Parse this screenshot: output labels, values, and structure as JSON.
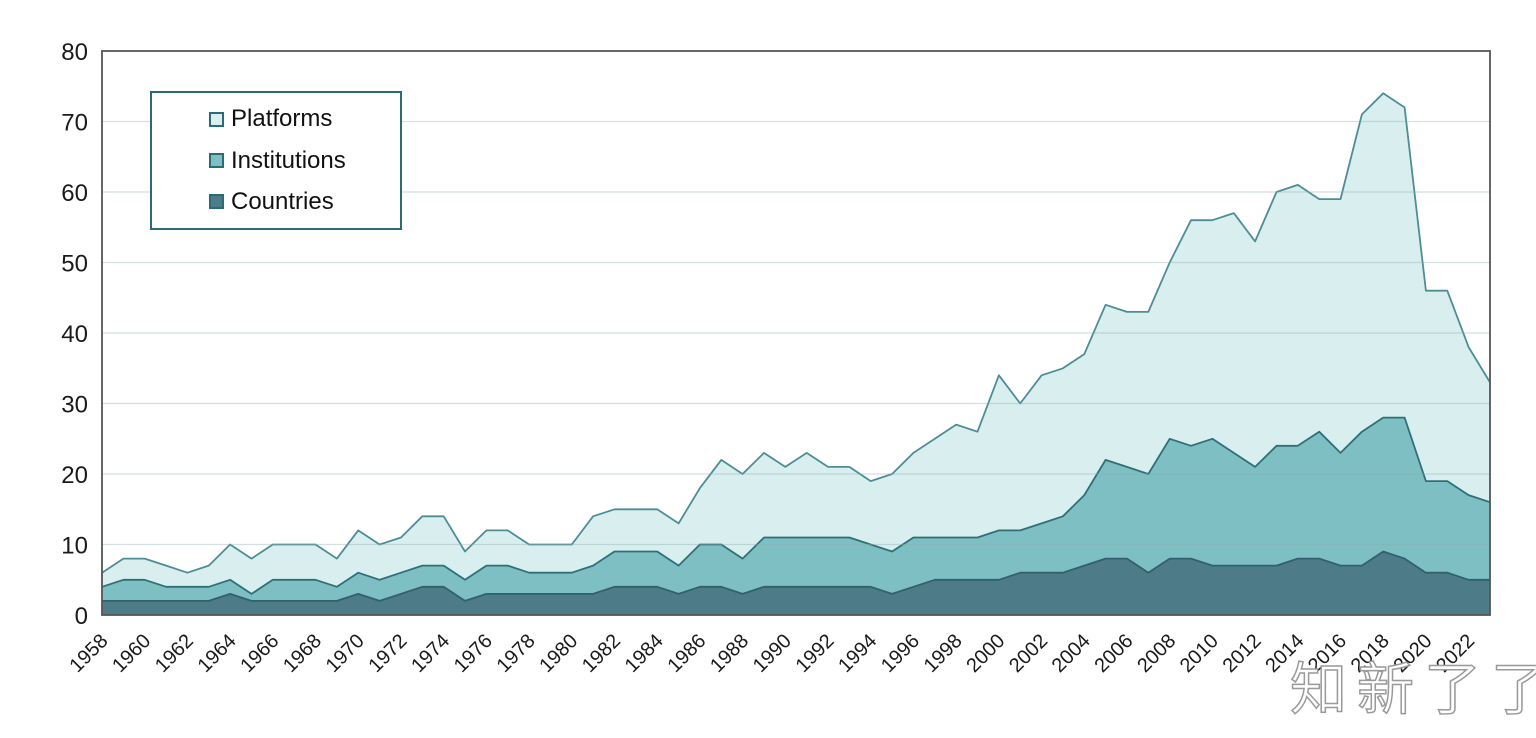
{
  "watermark": {
    "text": "知新了了"
  },
  "colors": {
    "grid": "rgba(140,170,175,0.38)",
    "plot_border": "#555555",
    "axis_text": "#1a1a1a",
    "legend_border": "#2a6b77",
    "background": "#ffffff"
  },
  "chart_data": {
    "type": "area",
    "stacked": false,
    "title": "",
    "xlabel": "",
    "ylabel": "",
    "grid": true,
    "ylim": [
      0,
      80
    ],
    "y_ticks": [
      0,
      10,
      20,
      30,
      40,
      50,
      60,
      70,
      80
    ],
    "x_start_year": 1958,
    "x_end_year": 2023,
    "x_tick_labels": [
      "1958",
      "1960",
      "1962",
      "1964",
      "1966",
      "1968",
      "1970",
      "1972",
      "1974",
      "1976",
      "1978",
      "1980",
      "1982",
      "1984",
      "1986",
      "1988",
      "1990",
      "1992",
      "1994",
      "1996",
      "1998",
      "2000",
      "2002",
      "2004",
      "2006",
      "2008",
      "2010",
      "2012",
      "2014",
      "2016",
      "2018",
      "2020",
      "2022"
    ],
    "legend": {
      "position": "top-left",
      "entries": [
        "Platforms",
        "Institutions",
        "Countries"
      ]
    },
    "series": [
      {
        "name": "Platforms",
        "fill": "#d9efef",
        "line": "#4f8d96",
        "values": [
          6,
          8,
          8,
          7,
          6,
          7,
          10,
          8,
          10,
          10,
          10,
          8,
          12,
          10,
          11,
          14,
          14,
          9,
          12,
          12,
          10,
          10,
          10,
          14,
          15,
          15,
          15,
          13,
          18,
          22,
          20,
          23,
          21,
          23,
          21,
          21,
          19,
          20,
          23,
          25,
          27,
          26,
          34,
          30,
          34,
          35,
          37,
          44,
          43,
          43,
          50,
          56,
          56,
          57,
          53,
          60,
          61,
          59,
          59,
          71,
          74,
          72,
          46,
          46,
          38,
          33
        ]
      },
      {
        "name": "Institutions",
        "fill": "#7dbfc3",
        "line": "#2f7077",
        "values": [
          4,
          5,
          5,
          4,
          4,
          4,
          5,
          3,
          5,
          5,
          5,
          4,
          6,
          5,
          6,
          7,
          7,
          5,
          7,
          7,
          6,
          6,
          6,
          7,
          9,
          9,
          9,
          7,
          10,
          10,
          8,
          11,
          11,
          11,
          11,
          11,
          10,
          9,
          11,
          11,
          11,
          11,
          12,
          12,
          13,
          14,
          17,
          22,
          21,
          20,
          25,
          24,
          25,
          23,
          21,
          24,
          24,
          26,
          23,
          26,
          28,
          28,
          19,
          19,
          17,
          16
        ]
      },
      {
        "name": "Countries",
        "fill": "#4e7b88",
        "line": "#32606c",
        "values": [
          2,
          2,
          2,
          2,
          2,
          2,
          3,
          2,
          2,
          2,
          2,
          2,
          3,
          2,
          3,
          4,
          4,
          2,
          3,
          3,
          3,
          3,
          3,
          3,
          4,
          4,
          4,
          3,
          4,
          4,
          3,
          4,
          4,
          4,
          4,
          4,
          4,
          3,
          4,
          5,
          5,
          5,
          5,
          6,
          6,
          6,
          7,
          8,
          8,
          6,
          8,
          8,
          7,
          7,
          7,
          7,
          8,
          8,
          7,
          7,
          9,
          8,
          6,
          6,
          5,
          5
        ]
      }
    ]
  }
}
